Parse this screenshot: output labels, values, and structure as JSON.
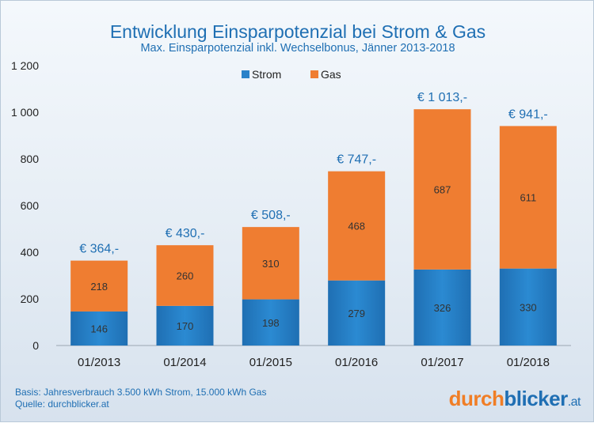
{
  "title": "Entwicklung Einsparpotenzial bei Strom & Gas",
  "subtitle": "Max. Einsparpotenzial inkl. Wechselbonus, Jänner 2013-2018",
  "footer": {
    "line1": "Basis: Jahresverbrauch  3.500 kWh Strom, 15.000 kWh Gas",
    "line2": "Quelle:  durchblicker.at"
  },
  "logo": {
    "part1": "durch",
    "part2": "blicker",
    "part3": ".at"
  },
  "colors": {
    "strom": "#2b82c9",
    "gas": "#ef7d31",
    "text": "#1f6fb3"
  },
  "chart_data": {
    "type": "bar",
    "stacked": true,
    "categories": [
      "01/2013",
      "01/2014",
      "01/2015",
      "01/2016",
      "01/2017",
      "01/2018"
    ],
    "series": [
      {
        "name": "Strom",
        "values": [
          146,
          170,
          198,
          279,
          326,
          330
        ]
      },
      {
        "name": "Gas",
        "values": [
          218,
          260,
          310,
          468,
          687,
          611
        ]
      }
    ],
    "totals": [
      "€ 364,-",
      "€ 430,-",
      "€ 508,-",
      "€ 747,-",
      "€ 1 013,-",
      "€ 941,-"
    ],
    "yticks": [
      "0",
      "200",
      "400",
      "600",
      "800",
      "1 000",
      "1 200"
    ],
    "ylim": [
      0,
      1200
    ],
    "legend_position": "top-center",
    "grid": false
  }
}
